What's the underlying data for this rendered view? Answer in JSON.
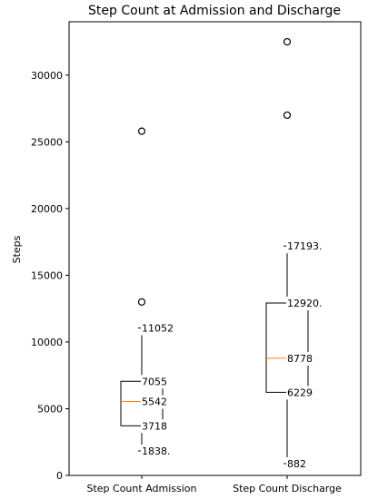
{
  "chart_data": {
    "type": "box",
    "title": "Step Count at Admission and Discharge",
    "xlabel": "",
    "ylabel": "Steps",
    "categories": [
      "Step Count Admission",
      "Step Count Discharge"
    ],
    "ylim": [
      0,
      34000
    ],
    "yticks": [
      0,
      5000,
      10000,
      15000,
      20000,
      25000,
      30000
    ],
    "ytick_labels": [
      "0",
      "5000",
      "10000",
      "15000",
      "20000",
      "25000",
      "30000"
    ],
    "grid": false,
    "series": [
      {
        "whisker_low": 1838,
        "q1": 3718,
        "median": 5542,
        "q3": 7055,
        "whisker_high": 11052,
        "outliers": [
          13000,
          25800
        ],
        "labels": [
          {
            "value": 11052,
            "text": "11052"
          },
          {
            "value": 7055,
            "text": "7055"
          },
          {
            "value": 5542,
            "text": "5542"
          },
          {
            "value": 3718,
            "text": "3718"
          },
          {
            "value": 1838,
            "text": "1838."
          }
        ]
      },
      {
        "whisker_low": 882,
        "q1": 6229,
        "median": 8778,
        "q3": 12920,
        "whisker_high": 17193,
        "outliers": [
          27000,
          32500
        ],
        "labels": [
          {
            "value": 17193,
            "text": "17193."
          },
          {
            "value": 12920,
            "text": "12920."
          },
          {
            "value": 8778,
            "text": "8778"
          },
          {
            "value": 6229,
            "text": "6229"
          },
          {
            "value": 882,
            "text": "882"
          }
        ]
      }
    ],
    "colors": {
      "median": "#ff7f0e",
      "box": "#000000"
    }
  }
}
